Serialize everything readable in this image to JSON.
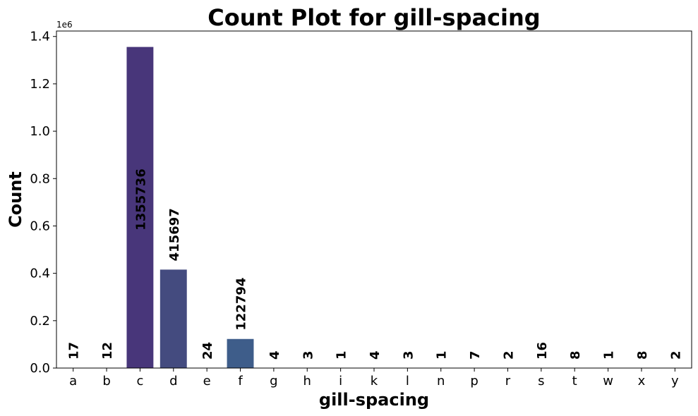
{
  "chart_data": {
    "type": "bar",
    "title": "Count Plot for gill-spacing",
    "xlabel": "gill-spacing",
    "ylabel": "Count",
    "y_offset_label": "1e6",
    "y_scale_divisor": 1000000,
    "ylim": [
      0,
      1423000
    ],
    "yticks": [
      0,
      200000,
      400000,
      600000,
      800000,
      1000000,
      1200000,
      1400000
    ],
    "ytick_labels": [
      "0.0",
      "0.2",
      "0.4",
      "0.6",
      "0.8",
      "1.0",
      "1.2",
      "1.4"
    ],
    "categories": [
      "a",
      "b",
      "c",
      "d",
      "e",
      "f",
      "g",
      "h",
      "i",
      "k",
      "l",
      "n",
      "p",
      "r",
      "s",
      "t",
      "w",
      "x",
      "y"
    ],
    "values": [
      17,
      12,
      1355736,
      415697,
      24,
      122794,
      4,
      3,
      1,
      4,
      3,
      1,
      7,
      2,
      16,
      8,
      1,
      8,
      2
    ],
    "colors": [
      "#45337d",
      "#463480",
      "#48367a",
      "#444b7f",
      "#3f5b89",
      "#3e5d8a",
      "#38698f",
      "#33738f",
      "#2e7f8f",
      "#29898e",
      "#25948c",
      "#22a086",
      "#27ac7f",
      "#38b877",
      "#52c469",
      "#72cf57",
      "#94d843",
      "#bade28",
      "#dde318"
    ],
    "grid": false,
    "legend": "none"
  }
}
